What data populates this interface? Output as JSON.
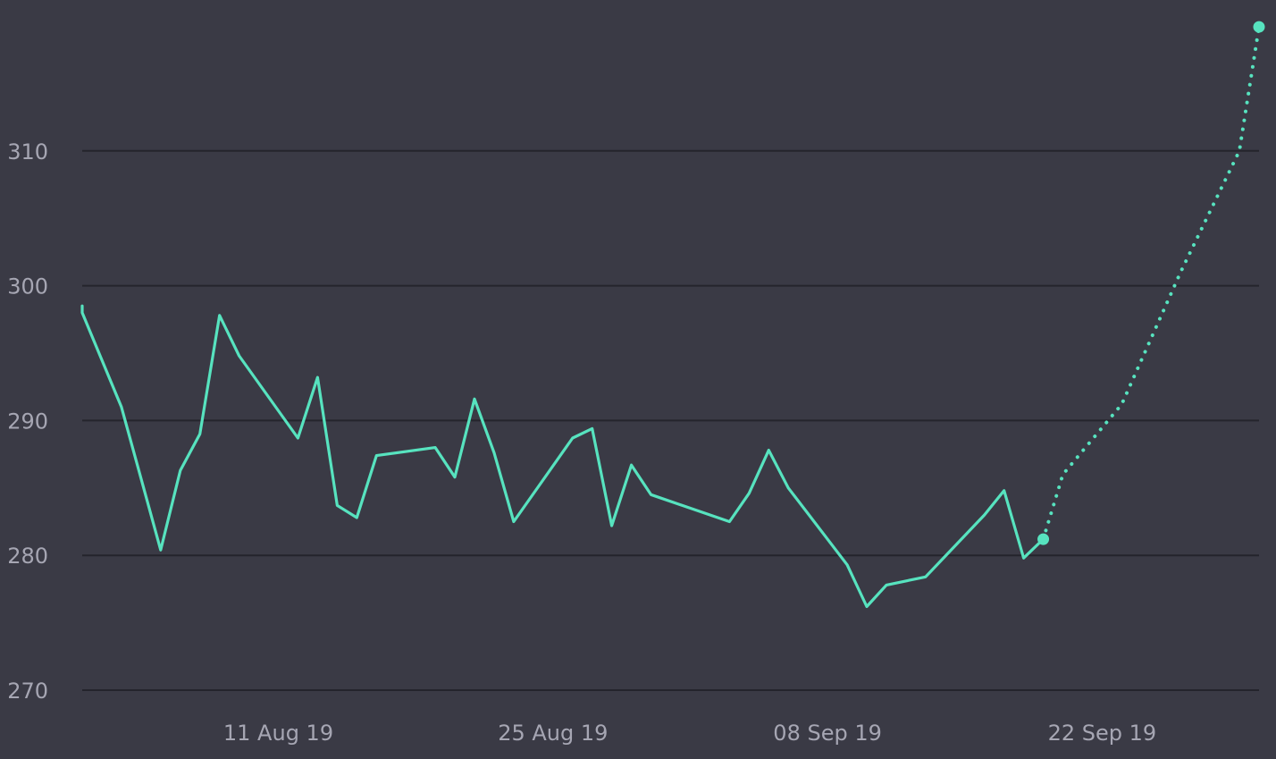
{
  "chart_data": {
    "type": "line",
    "title": "",
    "xlabel": "",
    "ylabel": "",
    "x_range": [
      "2019-08-01",
      "2019-09-30"
    ],
    "ylim": [
      270,
      320
    ],
    "y_ticks": [
      270,
      280,
      290,
      300,
      310
    ],
    "y_tick_labels": [
      "270",
      "280",
      "290",
      "300",
      "310"
    ],
    "x_ticks": [
      {
        "date": "2019-08-11",
        "label": "11 Aug 19"
      },
      {
        "date": "2019-08-25",
        "label": "25 Aug 19"
      },
      {
        "date": "2019-09-08",
        "label": "08 Sep 19"
      },
      {
        "date": "2019-09-22",
        "label": "22 Sep 19"
      }
    ],
    "grid": true,
    "series": [
      {
        "style": "solid",
        "color": "#57e3bf",
        "points": [
          {
            "x": "2019-08-01",
            "y": 298.5
          },
          {
            "x": "2019-08-01",
            "y": 298.0
          },
          {
            "x": "2019-08-03",
            "y": 291.0
          },
          {
            "x": "2019-08-05",
            "y": 280.4
          },
          {
            "x": "2019-08-06",
            "y": 286.3
          },
          {
            "x": "2019-08-07",
            "y": 289.0
          },
          {
            "x": "2019-08-08",
            "y": 297.8
          },
          {
            "x": "2019-08-09",
            "y": 294.8
          },
          {
            "x": "2019-08-12",
            "y": 288.7
          },
          {
            "x": "2019-08-13",
            "y": 293.2
          },
          {
            "x": "2019-08-14",
            "y": 283.7
          },
          {
            "x": "2019-08-15",
            "y": 282.8
          },
          {
            "x": "2019-08-16",
            "y": 287.4
          },
          {
            "x": "2019-08-19",
            "y": 288.0
          },
          {
            "x": "2019-08-20",
            "y": 285.8
          },
          {
            "x": "2019-08-21",
            "y": 291.6
          },
          {
            "x": "2019-08-22",
            "y": 287.6
          },
          {
            "x": "2019-08-23",
            "y": 282.5
          },
          {
            "x": "2019-08-26",
            "y": 288.7
          },
          {
            "x": "2019-08-27",
            "y": 289.4
          },
          {
            "x": "2019-08-28",
            "y": 282.2
          },
          {
            "x": "2019-08-29",
            "y": 286.7
          },
          {
            "x": "2019-08-30",
            "y": 284.5
          },
          {
            "x": "2019-09-03",
            "y": 282.5
          },
          {
            "x": "2019-09-04",
            "y": 284.6
          },
          {
            "x": "2019-09-05",
            "y": 287.8
          },
          {
            "x": "2019-09-06",
            "y": 285.0
          },
          {
            "x": "2019-09-09",
            "y": 279.3
          },
          {
            "x": "2019-09-10",
            "y": 276.2
          },
          {
            "x": "2019-09-11",
            "y": 277.8
          },
          {
            "x": "2019-09-13",
            "y": 278.4
          },
          {
            "x": "2019-09-16",
            "y": 283.0
          },
          {
            "x": "2019-09-17",
            "y": 284.8
          },
          {
            "x": "2019-09-18",
            "y": 279.8
          },
          {
            "x": "2019-09-19",
            "y": 281.2
          }
        ]
      },
      {
        "style": "dotted",
        "color": "#57e3bf",
        "points": [
          {
            "x": "2019-09-19",
            "y": 281.2
          },
          {
            "x": "2019-09-20",
            "y": 286.0
          },
          {
            "x": "2019-09-23",
            "y": 291.2
          },
          {
            "x": "2019-09-26",
            "y": 301.0
          },
          {
            "x": "2019-09-29",
            "y": 310.0
          },
          {
            "x": "2019-09-30",
            "y": 319.2
          }
        ]
      }
    ]
  }
}
